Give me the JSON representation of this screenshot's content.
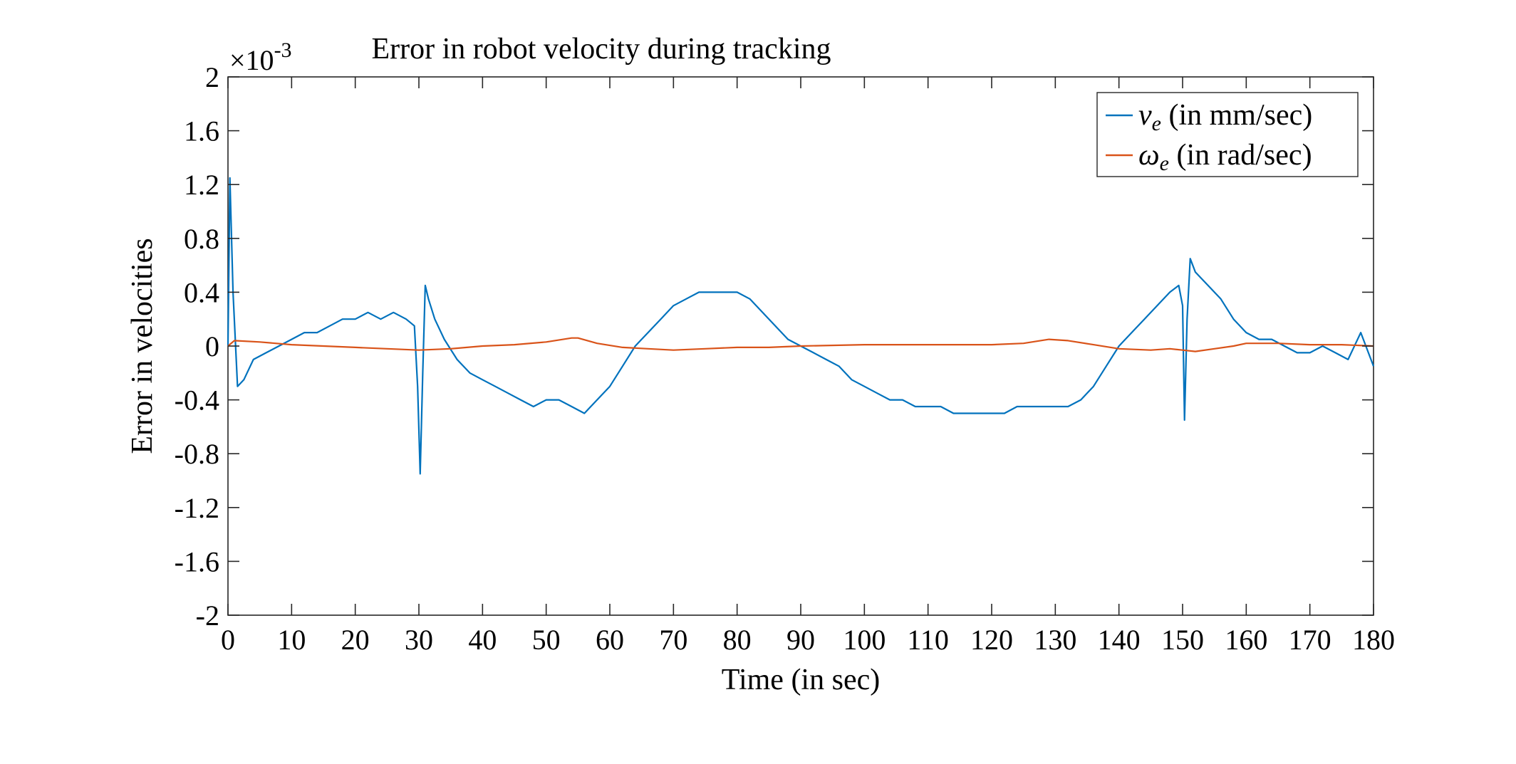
{
  "chart_data": {
    "type": "line",
    "title": "Error in robot velocity during tracking",
    "xlabel": "Time (in sec)",
    "ylabel": "Error in velocities",
    "y_exponent_label": "×10-3",
    "xlim": [
      0,
      180
    ],
    "ylim": [
      -2,
      2
    ],
    "x_ticks": [
      "0",
      "10",
      "20",
      "30",
      "40",
      "50",
      "60",
      "70",
      "80",
      "90",
      "100",
      "110",
      "120",
      "130",
      "140",
      "150",
      "160",
      "170",
      "180"
    ],
    "y_ticks": [
      "2",
      "1.6",
      "1.2",
      "0.8",
      "0.4",
      "0",
      "-0.4",
      "-0.8",
      "-1.2",
      "-1.6",
      "-2"
    ],
    "y_tick_values": [
      2,
      1.6,
      1.2,
      0.8,
      0.4,
      0,
      -0.4,
      -0.8,
      -1.2,
      -1.6,
      -2
    ],
    "x_tick_values": [
      0,
      10,
      20,
      30,
      40,
      50,
      60,
      70,
      80,
      90,
      100,
      110,
      120,
      130,
      140,
      150,
      160,
      170,
      180
    ],
    "grid": false,
    "legend_position": "top-right",
    "series": [
      {
        "name": "v_e (in mm/sec)",
        "legend_symbol": "v",
        "legend_sub": "e",
        "legend_rest": " (in mm/sec)",
        "color": "#0072BD",
        "x": [
          0,
          0.3,
          0.8,
          1.5,
          2.5,
          4,
          6,
          8,
          10,
          12,
          14,
          16,
          18,
          20,
          22,
          24,
          26,
          28,
          29.3,
          29.8,
          30.2,
          30.6,
          31,
          31.5,
          32.5,
          34,
          36,
          38,
          40,
          42,
          44,
          46,
          48,
          50,
          52,
          54,
          56,
          58,
          60,
          62,
          64,
          66,
          68,
          70,
          72,
          74,
          76,
          78,
          80,
          82,
          84,
          86,
          88,
          90,
          92,
          94,
          96,
          98,
          100,
          102,
          104,
          106,
          108,
          110,
          112,
          114,
          116,
          118,
          120,
          122,
          124,
          126,
          128,
          130,
          132,
          134,
          136,
          138,
          140,
          142,
          144,
          146,
          148,
          149.4,
          150,
          150.3,
          150.7,
          151.2,
          152,
          154,
          156,
          158,
          160,
          162,
          164,
          166,
          168,
          170,
          172,
          174,
          176,
          178,
          180
        ],
        "y": [
          0.0,
          1.25,
          0.4,
          -0.3,
          -0.25,
          -0.1,
          -0.05,
          0.0,
          0.05,
          0.1,
          0.1,
          0.15,
          0.2,
          0.2,
          0.25,
          0.2,
          0.25,
          0.2,
          0.15,
          -0.3,
          -0.95,
          -0.2,
          0.45,
          0.35,
          0.2,
          0.05,
          -0.1,
          -0.2,
          -0.25,
          -0.3,
          -0.35,
          -0.4,
          -0.45,
          -0.4,
          -0.4,
          -0.45,
          -0.5,
          -0.4,
          -0.3,
          -0.15,
          0.0,
          0.1,
          0.2,
          0.3,
          0.35,
          0.4,
          0.4,
          0.4,
          0.4,
          0.35,
          0.25,
          0.15,
          0.05,
          0.0,
          -0.05,
          -0.1,
          -0.15,
          -0.25,
          -0.3,
          -0.35,
          -0.4,
          -0.4,
          -0.45,
          -0.45,
          -0.45,
          -0.5,
          -0.5,
          -0.5,
          -0.5,
          -0.5,
          -0.45,
          -0.45,
          -0.45,
          -0.45,
          -0.45,
          -0.4,
          -0.3,
          -0.15,
          0.0,
          0.1,
          0.2,
          0.3,
          0.4,
          0.45,
          0.3,
          -0.55,
          0.2,
          0.65,
          0.55,
          0.45,
          0.35,
          0.2,
          0.1,
          0.05,
          0.05,
          0.0,
          -0.05,
          -0.05,
          0.0,
          -0.05,
          -0.1,
          0.1,
          -0.15
        ]
      },
      {
        "name": "ω_e (in rad/sec)",
        "legend_symbol": "ω",
        "legend_sub": "e",
        "legend_rest": " (in rad/sec)",
        "color": "#D95319",
        "x": [
          0,
          1,
          5,
          10,
          15,
          20,
          25,
          30,
          35,
          40,
          45,
          50,
          54,
          55,
          58,
          62,
          66,
          70,
          75,
          80,
          85,
          90,
          100,
          110,
          120,
          125,
          129,
          132,
          136,
          140,
          145,
          148,
          150,
          152,
          155,
          158,
          160,
          165,
          170,
          175,
          180
        ],
        "y": [
          0.0,
          0.04,
          0.03,
          0.01,
          0.0,
          -0.01,
          -0.02,
          -0.03,
          -0.02,
          0.0,
          0.01,
          0.03,
          0.06,
          0.06,
          0.02,
          -0.01,
          -0.02,
          -0.03,
          -0.02,
          -0.01,
          -0.01,
          0.0,
          0.01,
          0.01,
          0.01,
          0.02,
          0.05,
          0.04,
          0.01,
          -0.02,
          -0.03,
          -0.02,
          -0.03,
          -0.04,
          -0.02,
          0.0,
          0.02,
          0.02,
          0.01,
          0.01,
          0.0
        ]
      }
    ]
  }
}
